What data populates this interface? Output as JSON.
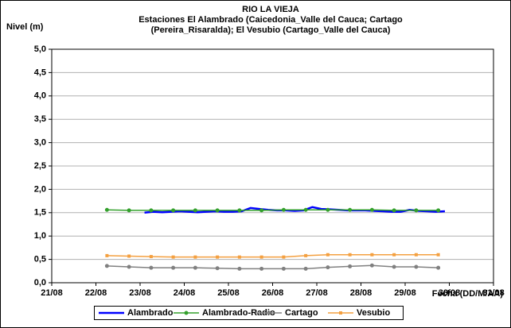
{
  "chart_data": {
    "type": "line",
    "title": "RIO LA VIEJA",
    "subtitle_lines": [
      "Estaciones El Alambrado (Caicedonia_Valle del Cauca; Cartago",
      "(Pereira_Risaralda);  El Vesubio (Cartago_Valle del Cauca)"
    ],
    "y_label": "Nivel (m)",
    "x_label": "Fecha (DD/M/AA)",
    "xlim": [
      21,
      31
    ],
    "xticks": [
      {
        "value": 21,
        "label": "21/08"
      },
      {
        "value": 22,
        "label": "22/08"
      },
      {
        "value": 23,
        "label": "23/08"
      },
      {
        "value": 24,
        "label": "24/08"
      },
      {
        "value": 25,
        "label": "25/08"
      },
      {
        "value": 26,
        "label": "26/08"
      },
      {
        "value": 27,
        "label": "27/08"
      },
      {
        "value": 28,
        "label": "28/08"
      },
      {
        "value": 29,
        "label": "29/08"
      },
      {
        "value": 30,
        "label": "30/08"
      },
      {
        "value": 31,
        "label": "31/08"
      }
    ],
    "ylim": [
      0,
      5
    ],
    "yticks": [
      {
        "value": 0,
        "label": "0,0"
      },
      {
        "value": 0.5,
        "label": "0,5"
      },
      {
        "value": 1,
        "label": "1,0"
      },
      {
        "value": 1.5,
        "label": "1,5"
      },
      {
        "value": 2,
        "label": "2,0"
      },
      {
        "value": 2.5,
        "label": "2,5"
      },
      {
        "value": 3,
        "label": "3,0"
      },
      {
        "value": 3.5,
        "label": "3,5"
      },
      {
        "value": 4,
        "label": "4,0"
      },
      {
        "value": 4.5,
        "label": "4,5"
      },
      {
        "value": 5,
        "label": "5,0"
      }
    ],
    "grid": true,
    "legend": "bottom",
    "series": [
      {
        "name": "Alambrado",
        "color": "#0000ff",
        "marker": "none",
        "x": [
          23.1,
          23.3,
          23.5,
          23.7,
          23.9,
          24.1,
          24.3,
          24.5,
          24.7,
          24.9,
          25.1,
          25.3,
          25.5,
          25.7,
          25.9,
          26.1,
          26.3,
          26.5,
          26.7,
          26.9,
          27.1,
          27.3,
          27.5,
          27.7,
          27.9,
          28.1,
          28.3,
          28.5,
          28.7,
          28.9,
          29.1,
          29.3,
          29.5,
          29.7,
          29.9
        ],
        "values": [
          1.5,
          1.52,
          1.51,
          1.52,
          1.53,
          1.52,
          1.51,
          1.52,
          1.53,
          1.52,
          1.52,
          1.53,
          1.6,
          1.58,
          1.56,
          1.55,
          1.55,
          1.54,
          1.55,
          1.62,
          1.58,
          1.57,
          1.56,
          1.55,
          1.55,
          1.55,
          1.54,
          1.53,
          1.52,
          1.52,
          1.56,
          1.54,
          1.53,
          1.52,
          1.53
        ]
      },
      {
        "name": "Alambrado-Radio",
        "color": "#33a02c",
        "marker": "circle",
        "x": [
          22.25,
          22.75,
          23.25,
          23.75,
          24.25,
          24.75,
          25.25,
          25.75,
          26.25,
          26.75,
          27.25,
          27.75,
          28.25,
          28.75,
          29.25,
          29.75
        ],
        "values": [
          1.56,
          1.55,
          1.55,
          1.55,
          1.55,
          1.55,
          1.55,
          1.55,
          1.56,
          1.56,
          1.56,
          1.56,
          1.56,
          1.55,
          1.55,
          1.55
        ]
      },
      {
        "name": "Cartago",
        "color": "#808080",
        "marker": "circle",
        "x": [
          22.25,
          22.75,
          23.25,
          23.75,
          24.25,
          24.75,
          25.25,
          25.75,
          26.25,
          26.75,
          27.25,
          27.75,
          28.25,
          28.75,
          29.25,
          29.75
        ],
        "values": [
          0.36,
          0.34,
          0.32,
          0.32,
          0.32,
          0.31,
          0.3,
          0.3,
          0.3,
          0.3,
          0.33,
          0.35,
          0.37,
          0.34,
          0.34,
          0.32
        ]
      },
      {
        "name": "Vesubio",
        "color": "#f4a040",
        "marker": "square",
        "x": [
          22.25,
          22.75,
          23.25,
          23.75,
          24.25,
          24.75,
          25.25,
          25.75,
          26.25,
          26.75,
          27.25,
          27.75,
          28.25,
          28.75,
          29.25,
          29.75
        ],
        "values": [
          0.58,
          0.57,
          0.56,
          0.55,
          0.55,
          0.55,
          0.55,
          0.55,
          0.55,
          0.58,
          0.6,
          0.6,
          0.6,
          0.6,
          0.6,
          0.6
        ]
      }
    ]
  }
}
